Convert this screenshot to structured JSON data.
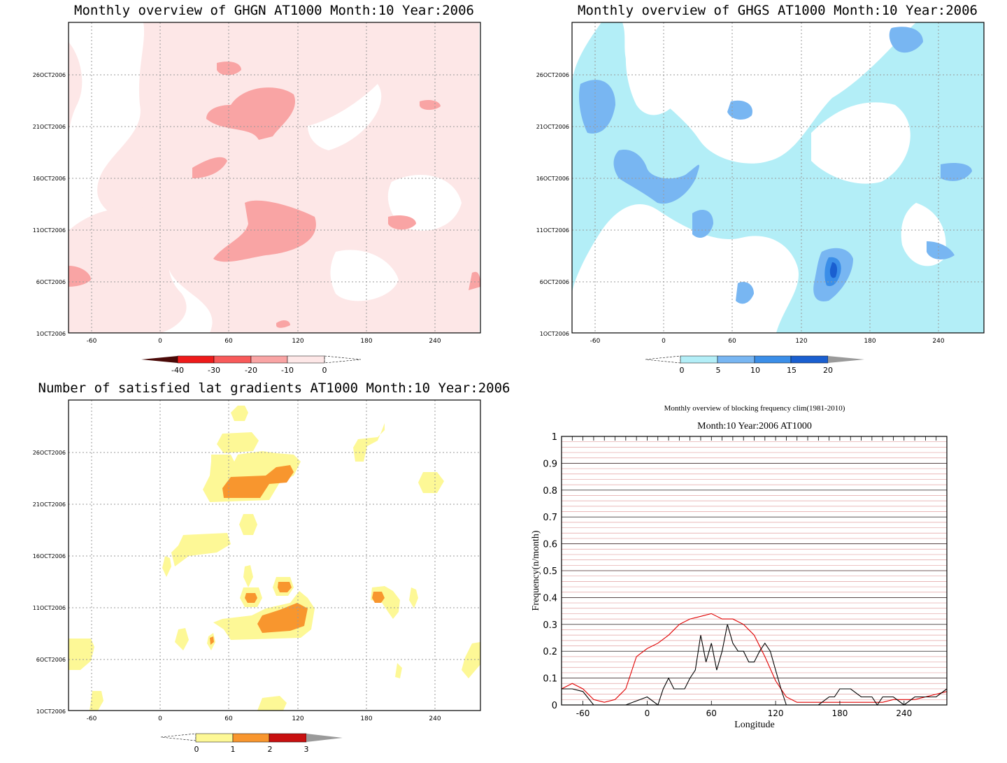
{
  "panels": [
    {
      "id": "p1",
      "type": "hovmoller",
      "title": "Monthly overview of GHGN AT1000 Month:10 Year:2006",
      "x_ticks": [
        "-60",
        "0",
        "60",
        "120",
        "180",
        "240"
      ],
      "y_ticks": [
        "1OCT2006",
        "6OCT2006",
        "11OCT2006",
        "16OCT2006",
        "21OCT2006",
        "26OCT2006"
      ],
      "colorbar": {
        "labels": [
          "-40",
          "-30",
          "-20",
          "-10",
          "0"
        ],
        "colors": [
          "#4a0a08",
          "#ee1a1a",
          "#f85a5a",
          "#f9a4a4",
          "#fde7e7"
        ],
        "low_arrow": true,
        "high_arrow_dashed": true
      }
    },
    {
      "id": "p2",
      "type": "hovmoller",
      "title": "Monthly overview of GHGS AT1000 Month:10 Year:2006",
      "x_ticks": [
        "-60",
        "0",
        "60",
        "120",
        "180",
        "240"
      ],
      "y_ticks": [
        "1OCT2006",
        "6OCT2006",
        "11OCT2006",
        "16OCT2006",
        "21OCT2006",
        "26OCT2006"
      ],
      "colorbar": {
        "labels": [
          "0",
          "5",
          "10",
          "15",
          "20"
        ],
        "colors": [
          "#b3eef7",
          "#78b6f2",
          "#3b8ee8",
          "#1a5fd0",
          "#9a9a9a"
        ],
        "low_arrow_dashed": true,
        "high_arrow": true
      }
    },
    {
      "id": "p3",
      "type": "hovmoller",
      "title": "Number of satisfied lat gradients AT1000 Month:10 Year:2006",
      "x_ticks": [
        "-60",
        "0",
        "60",
        "120",
        "180",
        "240"
      ],
      "y_ticks": [
        "1OCT2006",
        "6OCT2006",
        "11OCT2006",
        "16OCT2006",
        "21OCT2006",
        "26OCT2006"
      ],
      "colorbar": {
        "labels": [
          "0",
          "1",
          "2",
          "3"
        ],
        "colors": [
          "#fdf896",
          "#f8962e",
          "#c81010",
          "#9a9a9a"
        ],
        "low_arrow_dashed": true,
        "high_arrow": true
      }
    }
  ],
  "chart_data": {
    "type": "line",
    "title": "Monthly overview of blocking frequency clim(1981-2010)",
    "subtitle": "Month:10 Year:2006  AT1000",
    "xlabel": "Longitude",
    "ylabel": "Frequency(n/month)",
    "xlim": [
      -80,
      280
    ],
    "ylim": [
      0,
      1
    ],
    "x_ticks": [
      "-60",
      "0",
      "60",
      "120",
      "180",
      "240"
    ],
    "y_ticks": [
      "0",
      "0.1",
      "0.2",
      "0.3",
      "0.4",
      "0.5",
      "0.6",
      "0.7",
      "0.8",
      "0.9",
      "1"
    ],
    "grid": true,
    "series": [
      {
        "color": "#e00000",
        "x": [
          -80,
          -70,
          -60,
          -50,
          -40,
          -30,
          -20,
          -10,
          0,
          10,
          20,
          30,
          40,
          50,
          60,
          70,
          80,
          90,
          100,
          110,
          120,
          130,
          140,
          150,
          160,
          170,
          180,
          190,
          200,
          210,
          220,
          230,
          240,
          250,
          260,
          270,
          280
        ],
        "values": [
          0.06,
          0.08,
          0.06,
          0.02,
          0.01,
          0.02,
          0.06,
          0.18,
          0.21,
          0.23,
          0.26,
          0.3,
          0.32,
          0.33,
          0.34,
          0.32,
          0.32,
          0.3,
          0.26,
          0.18,
          0.09,
          0.03,
          0.01,
          0.01,
          0.01,
          0.01,
          0.01,
          0.01,
          0.01,
          0.01,
          0.01,
          0.02,
          0.02,
          0.02,
          0.03,
          0.04,
          0.05
        ]
      },
      {
        "color": "#000000",
        "x": [
          -80,
          -70,
          -60,
          -50,
          -45,
          -40,
          -20,
          0,
          10,
          15,
          20,
          25,
          30,
          35,
          40,
          45,
          50,
          55,
          60,
          65,
          70,
          75,
          80,
          85,
          90,
          95,
          100,
          105,
          110,
          115,
          120,
          125,
          130,
          135,
          160,
          170,
          175,
          180,
          190,
          200,
          210,
          215,
          220,
          230,
          240,
          250,
          260,
          270,
          280
        ],
        "values": [
          0.06,
          0.06,
          0.05,
          0.0,
          0.0,
          0.0,
          0.0,
          0.03,
          0.0,
          0.06,
          0.1,
          0.06,
          0.06,
          0.06,
          0.1,
          0.13,
          0.26,
          0.16,
          0.23,
          0.13,
          0.2,
          0.3,
          0.23,
          0.2,
          0.2,
          0.16,
          0.16,
          0.2,
          0.23,
          0.2,
          0.13,
          0.06,
          0.0,
          0.0,
          0.0,
          0.03,
          0.03,
          0.06,
          0.06,
          0.03,
          0.03,
          0.0,
          0.03,
          0.03,
          0.0,
          0.03,
          0.03,
          0.03,
          0.06
        ]
      }
    ]
  }
}
